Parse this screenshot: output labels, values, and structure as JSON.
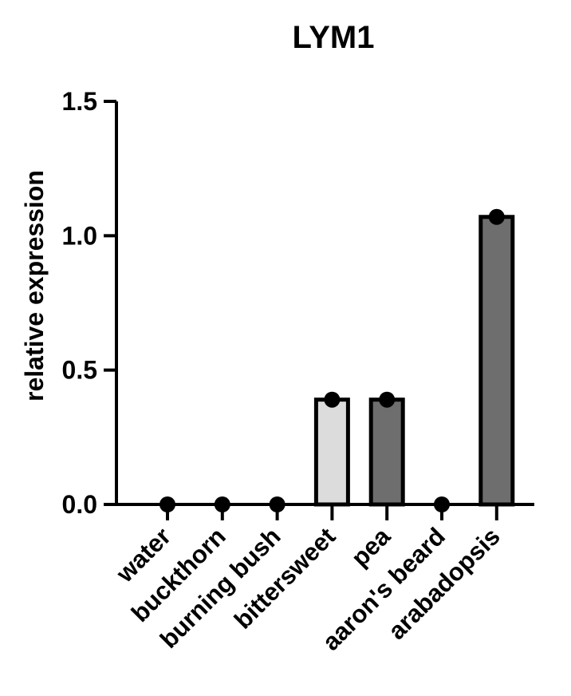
{
  "chart_data": {
    "type": "bar",
    "title": "LYM1",
    "xlabel": "",
    "ylabel": "relative expression",
    "ylim": [
      0,
      1.5
    ],
    "yticks": [
      "0.0",
      "0.5",
      "1.0",
      "1.5"
    ],
    "grid": false,
    "categories": [
      "water",
      "buckthorn",
      "burning bush",
      "bittersweet",
      "pea",
      "aaron's beard",
      "arabadopsis"
    ],
    "values": [
      0.0,
      0.0,
      0.0,
      0.39,
      0.39,
      0.0,
      1.07
    ],
    "points": [
      0.0,
      0.0,
      0.0,
      0.39,
      0.39,
      0.0,
      1.07
    ],
    "bar_colors": [
      "#6e6e6e",
      "#6e6e6e",
      "#6e6e6e",
      "#dcdcdc",
      "#6e6e6e",
      "#6e6e6e",
      "#6e6e6e"
    ],
    "edge_color": "#000000",
    "point_color": "#000000"
  }
}
